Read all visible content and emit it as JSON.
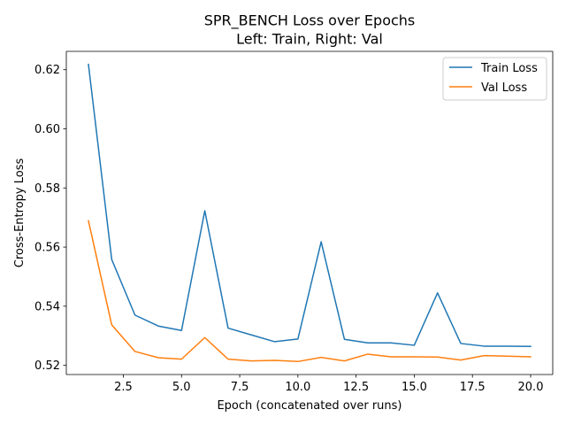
{
  "chart_data": {
    "type": "line",
    "title": "SPR_BENCH Loss over Epochs",
    "subtitle": "Left: Train, Right: Val",
    "xlabel": "Epoch (concatenated over runs)",
    "ylabel": "Cross-Entropy Loss",
    "xlim": [
      0.05,
      20.95
    ],
    "ylim": [
      0.5169,
      0.6262
    ],
    "xticks": [
      2.5,
      5.0,
      7.5,
      10.0,
      12.5,
      15.0,
      17.5,
      20.0
    ],
    "xtick_labels": [
      "2.5",
      "5.0",
      "7.5",
      "10.0",
      "12.5",
      "15.0",
      "17.5",
      "20.0"
    ],
    "yticks": [
      0.52,
      0.54,
      0.56,
      0.58,
      0.6,
      0.62
    ],
    "ytick_labels": [
      "0.52",
      "0.54",
      "0.56",
      "0.58",
      "0.60",
      "0.62"
    ],
    "grid": false,
    "legend_position": "top-right",
    "x": [
      1,
      2,
      3,
      4,
      5,
      6,
      7,
      8,
      9,
      10,
      11,
      12,
      13,
      14,
      15,
      16,
      17,
      18,
      19,
      20
    ],
    "series": [
      {
        "name": "Train Loss",
        "color": "#1f77b4",
        "values": [
          0.6218,
          0.5558,
          0.537,
          0.5333,
          0.5318,
          0.5723,
          0.5326,
          0.5303,
          0.528,
          0.5289,
          0.5618,
          0.5288,
          0.5276,
          0.5276,
          0.5268,
          0.5445,
          0.5274,
          0.5265,
          0.5265,
          0.5264
        ]
      },
      {
        "name": "Val Loss",
        "color": "#ff7f0e",
        "values": [
          0.5689,
          0.5337,
          0.5247,
          0.5226,
          0.5221,
          0.5294,
          0.5221,
          0.5215,
          0.5217,
          0.5213,
          0.5227,
          0.5215,
          0.5238,
          0.5229,
          0.5229,
          0.5228,
          0.5218,
          0.5233,
          0.5231,
          0.5229
        ]
      }
    ]
  }
}
